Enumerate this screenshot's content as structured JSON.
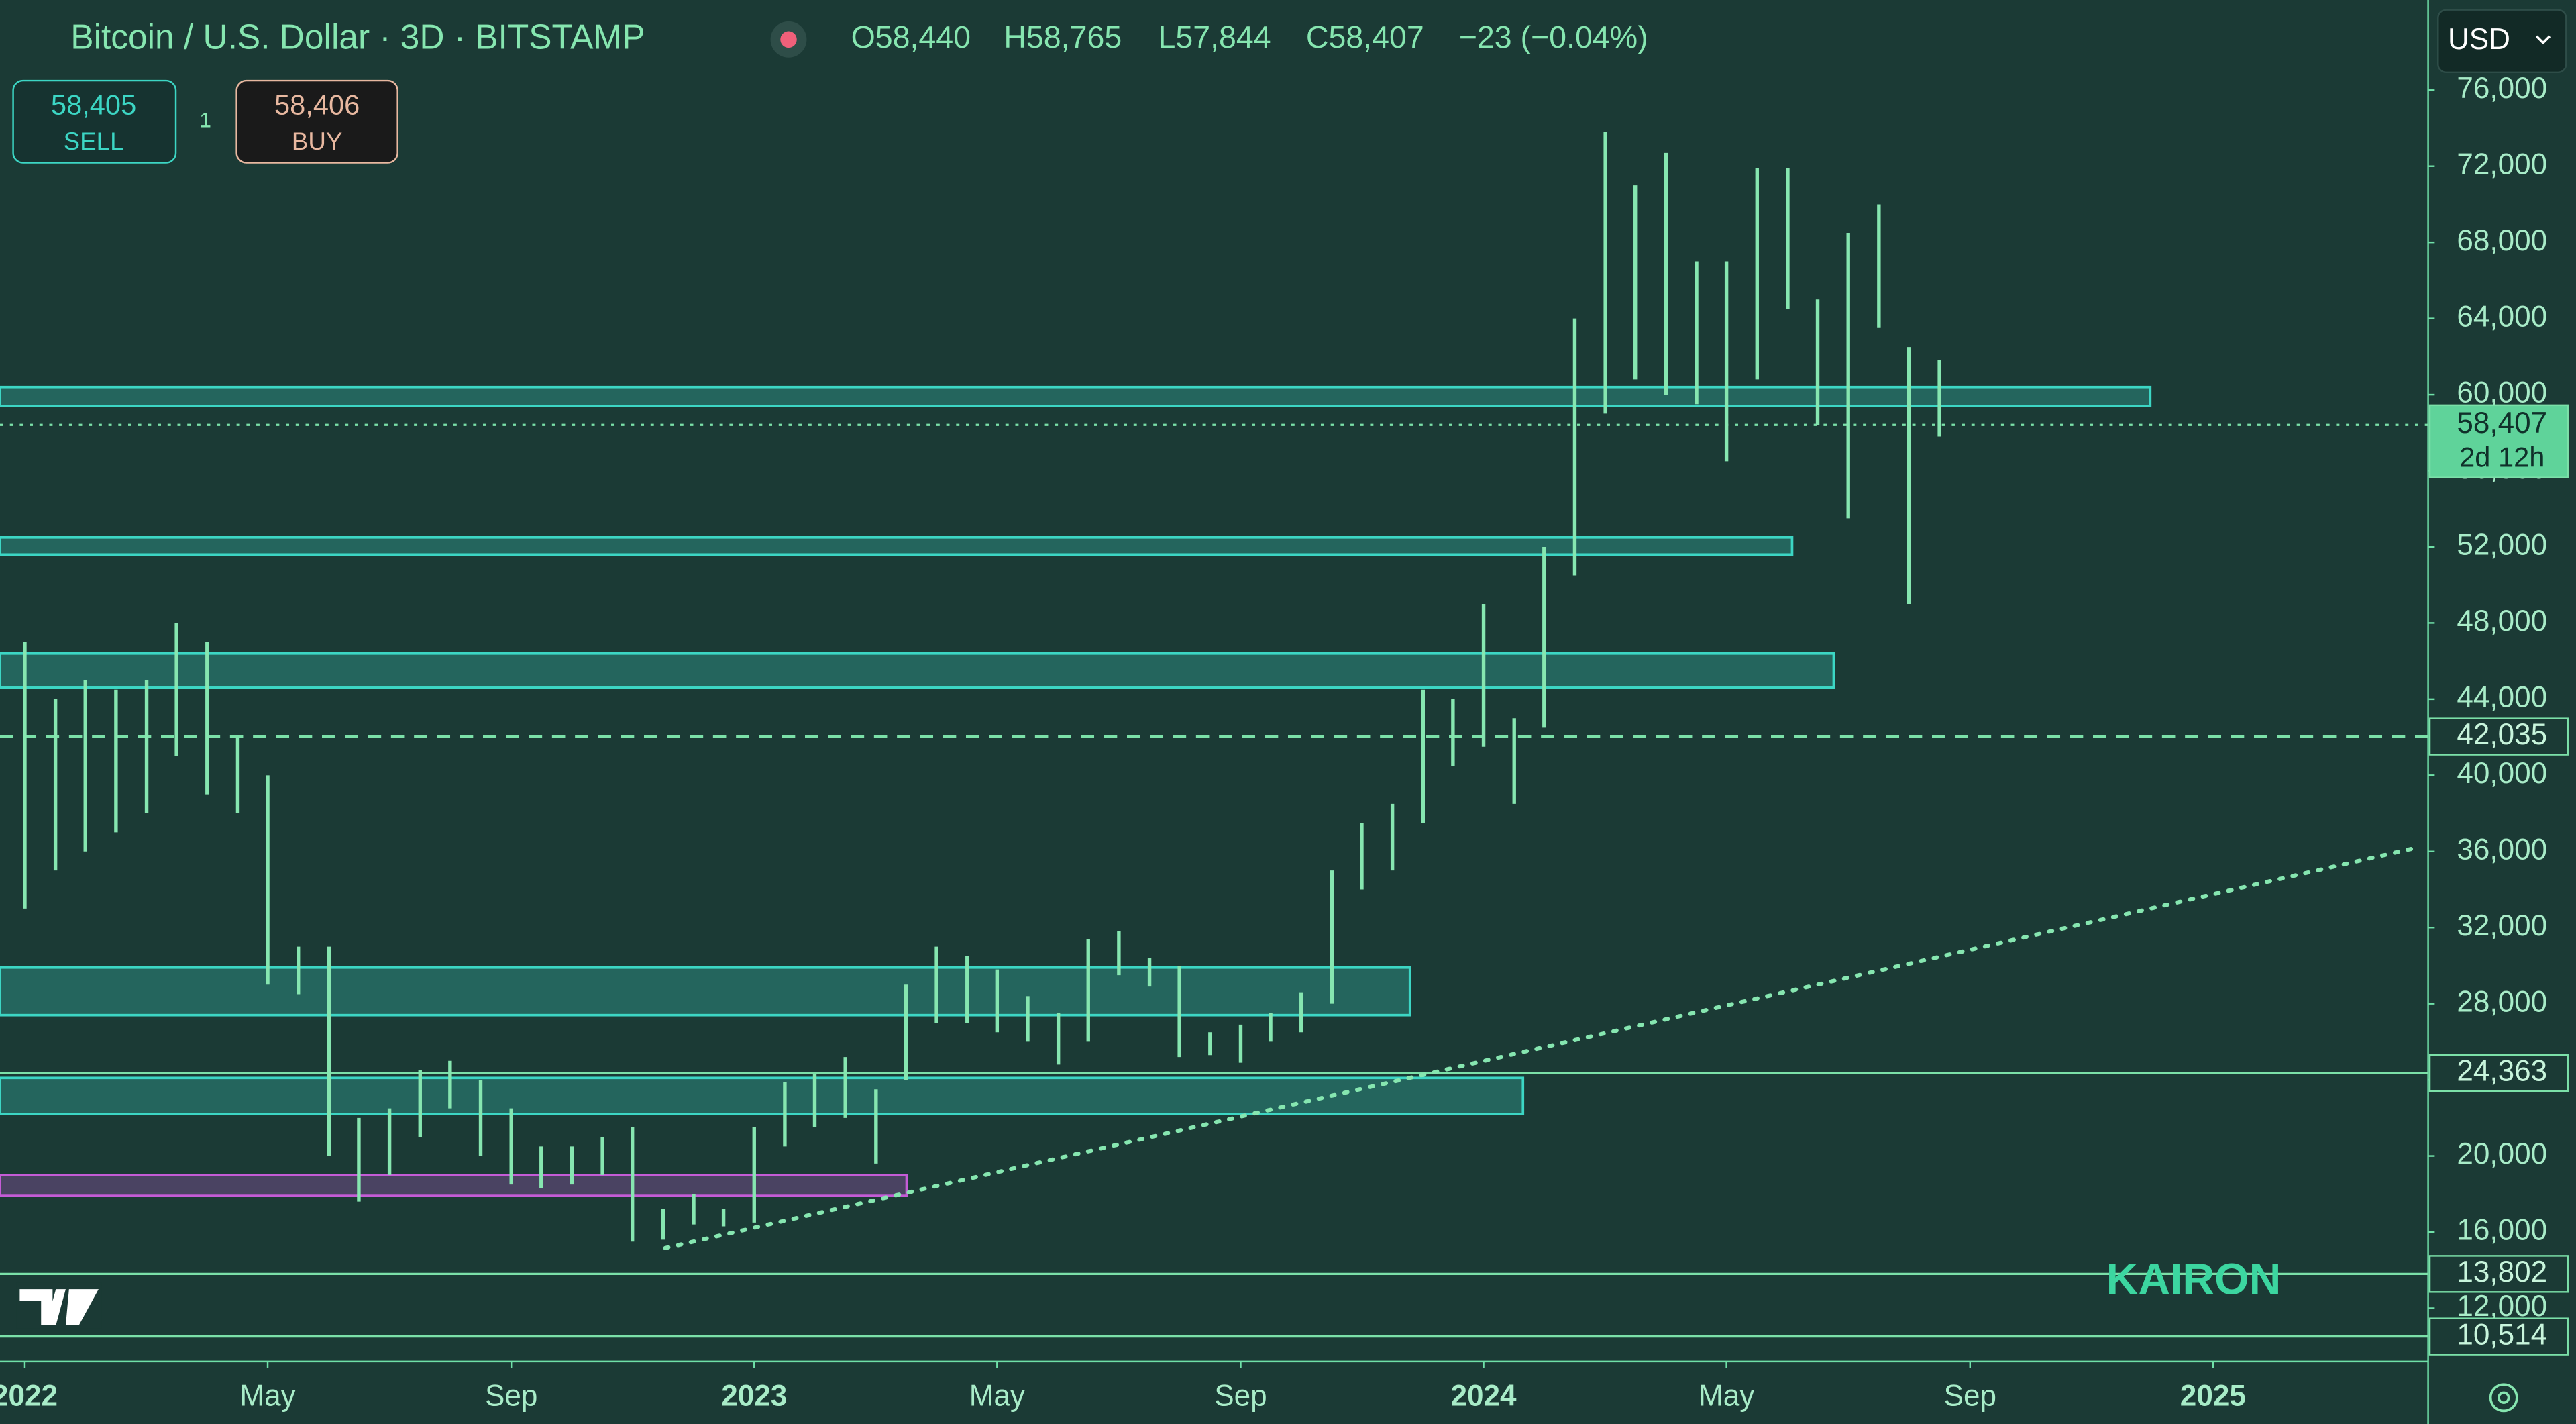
{
  "header": {
    "title": "Bitcoin / U.S. Dollar · 3D · BITSTAMP",
    "ohlc": [
      "O58,440",
      "H58,765",
      "L57,844",
      "C58,407",
      "−23 (−0.04%)"
    ],
    "sell_price": "58,405",
    "sell_label": "SELL",
    "spread": "1",
    "buy_price": "58,406",
    "buy_label": "BUY",
    "currency": "USD",
    "watermark": "KAIRON"
  },
  "chart_data": {
    "type": "ohlc",
    "color": "#86e6b0",
    "x": [
      2022.0,
      2022.042,
      2022.083,
      2022.125,
      2022.167,
      2022.208,
      2022.25,
      2022.292,
      2022.333,
      2022.375,
      2022.417,
      2022.458,
      2022.5,
      2022.542,
      2022.583,
      2022.625,
      2022.667,
      2022.708,
      2022.75,
      2022.792,
      2022.833,
      2022.875,
      2022.917,
      2022.958,
      2023.0,
      2023.042,
      2023.083,
      2023.125,
      2023.167,
      2023.208,
      2023.25,
      2023.292,
      2023.333,
      2023.375,
      2023.417,
      2023.458,
      2023.5,
      2023.542,
      2023.583,
      2023.625,
      2023.667,
      2023.708,
      2023.75,
      2023.792,
      2023.833,
      2023.875,
      2023.917,
      2023.958,
      2024.0,
      2024.042,
      2024.083,
      2024.125,
      2024.167,
      2024.208,
      2024.25,
      2024.292,
      2024.333,
      2024.375,
      2024.417,
      2024.458,
      2024.5,
      2024.542,
      2024.583,
      2024.625
    ],
    "high": [
      47000,
      44000,
      45000,
      44500,
      45000,
      48000,
      47000,
      42000,
      40000,
      31000,
      31000,
      22000,
      22500,
      24500,
      25000,
      24000,
      22500,
      20500,
      20500,
      21000,
      21500,
      17200,
      18000,
      17200,
      21500,
      23900,
      24300,
      25200,
      23500,
      29000,
      31000,
      30500,
      29800,
      28400,
      27500,
      31400,
      31800,
      30400,
      30000,
      26500,
      26900,
      27500,
      28600,
      35000,
      37500,
      38500,
      44500,
      44000,
      49000,
      43000,
      52000,
      64000,
      73800,
      71000,
      72700,
      67000,
      67000,
      71900,
      71900,
      65000,
      68500,
      70000,
      62500,
      61800
    ],
    "low": [
      33000,
      35000,
      36000,
      37000,
      38000,
      41000,
      39000,
      38000,
      29000,
      28500,
      20000,
      17600,
      19000,
      21000,
      22500,
      20000,
      18500,
      18300,
      18500,
      19000,
      15500,
      15600,
      16400,
      16300,
      16500,
      20500,
      21500,
      22000,
      19600,
      24000,
      27000,
      27000,
      26500,
      26000,
      24800,
      26000,
      29500,
      28900,
      25200,
      25300,
      24900,
      26000,
      26500,
      28000,
      34000,
      35000,
      37500,
      40500,
      41500,
      38500,
      42500,
      50500,
      59000,
      60800,
      60000,
      59500,
      56500,
      60800,
      64500,
      58400,
      53500,
      63500,
      49000,
      57800
    ],
    "xlim": [
      2021.966,
      2025.295
    ],
    "xticks": [
      {
        "value": 2022,
        "label": "2022"
      },
      {
        "value": 2022.333,
        "label": "May"
      },
      {
        "value": 2022.667,
        "label": "Sep"
      },
      {
        "value": 2023,
        "label": "2023"
      },
      {
        "value": 2023.333,
        "label": "May"
      },
      {
        "value": 2023.667,
        "label": "Sep"
      },
      {
        "value": 2024,
        "label": "2024"
      },
      {
        "value": 2024.333,
        "label": "May"
      },
      {
        "value": 2024.667,
        "label": "Sep"
      },
      {
        "value": 2025,
        "label": "2025"
      }
    ],
    "ylim": [
      9200,
      80734
    ],
    "yticks": [
      {
        "value": 12000,
        "label": "12,000"
      },
      {
        "value": 16000,
        "label": "16,000"
      },
      {
        "value": 20000,
        "label": "20,000"
      },
      {
        "value": 24000,
        "label": "24,000"
      },
      {
        "value": 28000,
        "label": "28,000"
      },
      {
        "value": 32000,
        "label": "32,000"
      },
      {
        "value": 36000,
        "label": "36,000"
      },
      {
        "value": 40000,
        "label": "40,000"
      },
      {
        "value": 44000,
        "label": "44,000"
      },
      {
        "value": 48000,
        "label": "48,000"
      },
      {
        "value": 52000,
        "label": "52,000"
      },
      {
        "value": 56000,
        "label": "56,000"
      },
      {
        "value": 60000,
        "label": "60,000"
      },
      {
        "value": 64000,
        "label": "64,000"
      },
      {
        "value": 68000,
        "label": "68,000"
      },
      {
        "value": 72000,
        "label": "72,000"
      },
      {
        "value": 76000,
        "label": "76,000"
      }
    ],
    "zones": [
      {
        "low": 59400,
        "high": 60400,
        "end": 2024.914,
        "color": "#3cd6c4"
      },
      {
        "low": 51600,
        "high": 52500,
        "end": 2024.423,
        "color": "#3cd6c4"
      },
      {
        "low": 44600,
        "high": 46400,
        "end": 2024.48,
        "color": "#3cd6c4"
      },
      {
        "low": 27400,
        "high": 29900,
        "end": 2023.899,
        "color": "#3cd6c4"
      },
      {
        "low": 22200,
        "high": 24100,
        "end": 2024.054,
        "color": "#3cd6c4"
      },
      {
        "low": 17900,
        "high": 19000,
        "end": 2023.209,
        "color": "#c45cd6"
      }
    ],
    "trendline": {
      "x": [
        2022.878,
        2025.284
      ],
      "y": [
        15160,
        36240
      ],
      "color": "#86e6b0"
    },
    "price_lines": [
      {
        "value": 58407,
        "label": "58,407",
        "countdown": "2d 12h",
        "style": "dotted"
      },
      {
        "value": 42035,
        "label": "42,035",
        "style": "dashed"
      },
      {
        "value": 24363,
        "label": "24,363",
        "style": "solid"
      },
      {
        "value": 13802,
        "label": "13,802",
        "style": "solid"
      },
      {
        "value": 10514,
        "label": "10,514",
        "style": "solid"
      }
    ]
  }
}
